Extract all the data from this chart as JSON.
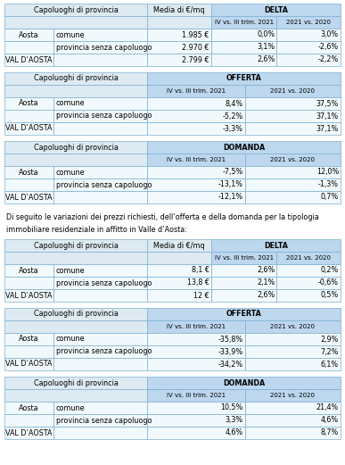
{
  "bg_color": "#ffffff",
  "header_bg": "#bdd7ee",
  "subheader_bg": "#deeaf1",
  "row_bg_light": "#f2f9fc",
  "row_bg_total": "#bdd7ee",
  "border_color": "#7bafd4",
  "text_color": "#000000",
  "table1": {
    "category": "DELTA",
    "col_headers": [
      "Capoluoghi di provincia",
      "Media di €/mq",
      "IV vs. III trim. 2021",
      "2021 vs. 2020"
    ],
    "rows": [
      [
        "Aosta",
        "comune",
        "1.985 €",
        "0,0%",
        "3,0%"
      ],
      [
        "",
        "provincia senza capoluogo",
        "2.970 €",
        "3,1%",
        "-2,6%"
      ],
      [
        "VAL D’AOSTA",
        "",
        "2.799 €",
        "2,6%",
        "-2,2%"
      ]
    ]
  },
  "table2": {
    "category": "OFFERTA",
    "col_headers": [
      "Capoluoghi di provincia",
      "IV vs. III trim. 2021",
      "2021 vs. 2020"
    ],
    "rows": [
      [
        "Aosta",
        "comune",
        "8,4%",
        "37,5%"
      ],
      [
        "",
        "provincia senza capoluogo",
        "-5,2%",
        "37,1%"
      ],
      [
        "VAL D’AOSTA",
        "",
        "-3,3%",
        "37,1%"
      ]
    ]
  },
  "table3": {
    "category": "DOMANDA",
    "col_headers": [
      "Capoluoghi di provincia",
      "IV vs. III trim. 2021",
      "2021 vs. 2020"
    ],
    "rows": [
      [
        "Aosta",
        "comune",
        "-7,5%",
        "12,0%"
      ],
      [
        "",
        "provincia senza capoluogo",
        "-13,1%",
        "-1,3%"
      ],
      [
        "VAL D’AOSTA",
        "",
        "-12,1%",
        "0,7%"
      ]
    ]
  },
  "intertext": "Di seguito le variazioni dei prezzi richiesti, dell’offerta e della domanda per la tipologia\nimmobiliare residenziale in affitto in Valle d’Aosta:",
  "table4": {
    "category": "DELTA",
    "col_headers": [
      "Capoluoghi di provincia",
      "Media di €/mq",
      "IV vs. III trim. 2021",
      "2021 vs. 2020"
    ],
    "rows": [
      [
        "Aosta",
        "comune",
        "8,1 €",
        "2,6%",
        "0,2%"
      ],
      [
        "",
        "provincia senza capoluogo",
        "13,8 €",
        "2,1%",
        "-0,6%"
      ],
      [
        "VAL D’AOSTA",
        "",
        "12 €",
        "2,6%",
        "0,5%"
      ]
    ]
  },
  "table5": {
    "category": "OFFERTA",
    "col_headers": [
      "Capoluoghi di provincia",
      "IV vs. III trim. 2021",
      "2021 vs. 2020"
    ],
    "rows": [
      [
        "Aosta",
        "comune",
        "-35,8%",
        "2,9%"
      ],
      [
        "",
        "provincia senza capoluogo",
        "-33,9%",
        "7,2%"
      ],
      [
        "VAL D’AOSTA",
        "",
        "-34,2%",
        "6,1%"
      ]
    ]
  },
  "table6": {
    "category": "DOMANDA",
    "col_headers": [
      "Capoluoghi di provincia",
      "IV vs. III trim. 2021",
      "2021 vs. 2020"
    ],
    "rows": [
      [
        "Aosta",
        "comune",
        "10,5%",
        "21,4%"
      ],
      [
        "",
        "provincia senza capoluogo",
        "3,3%",
        "4,6%"
      ],
      [
        "VAL D’AOSTA",
        "",
        "4,6%",
        "8,7%"
      ]
    ]
  }
}
